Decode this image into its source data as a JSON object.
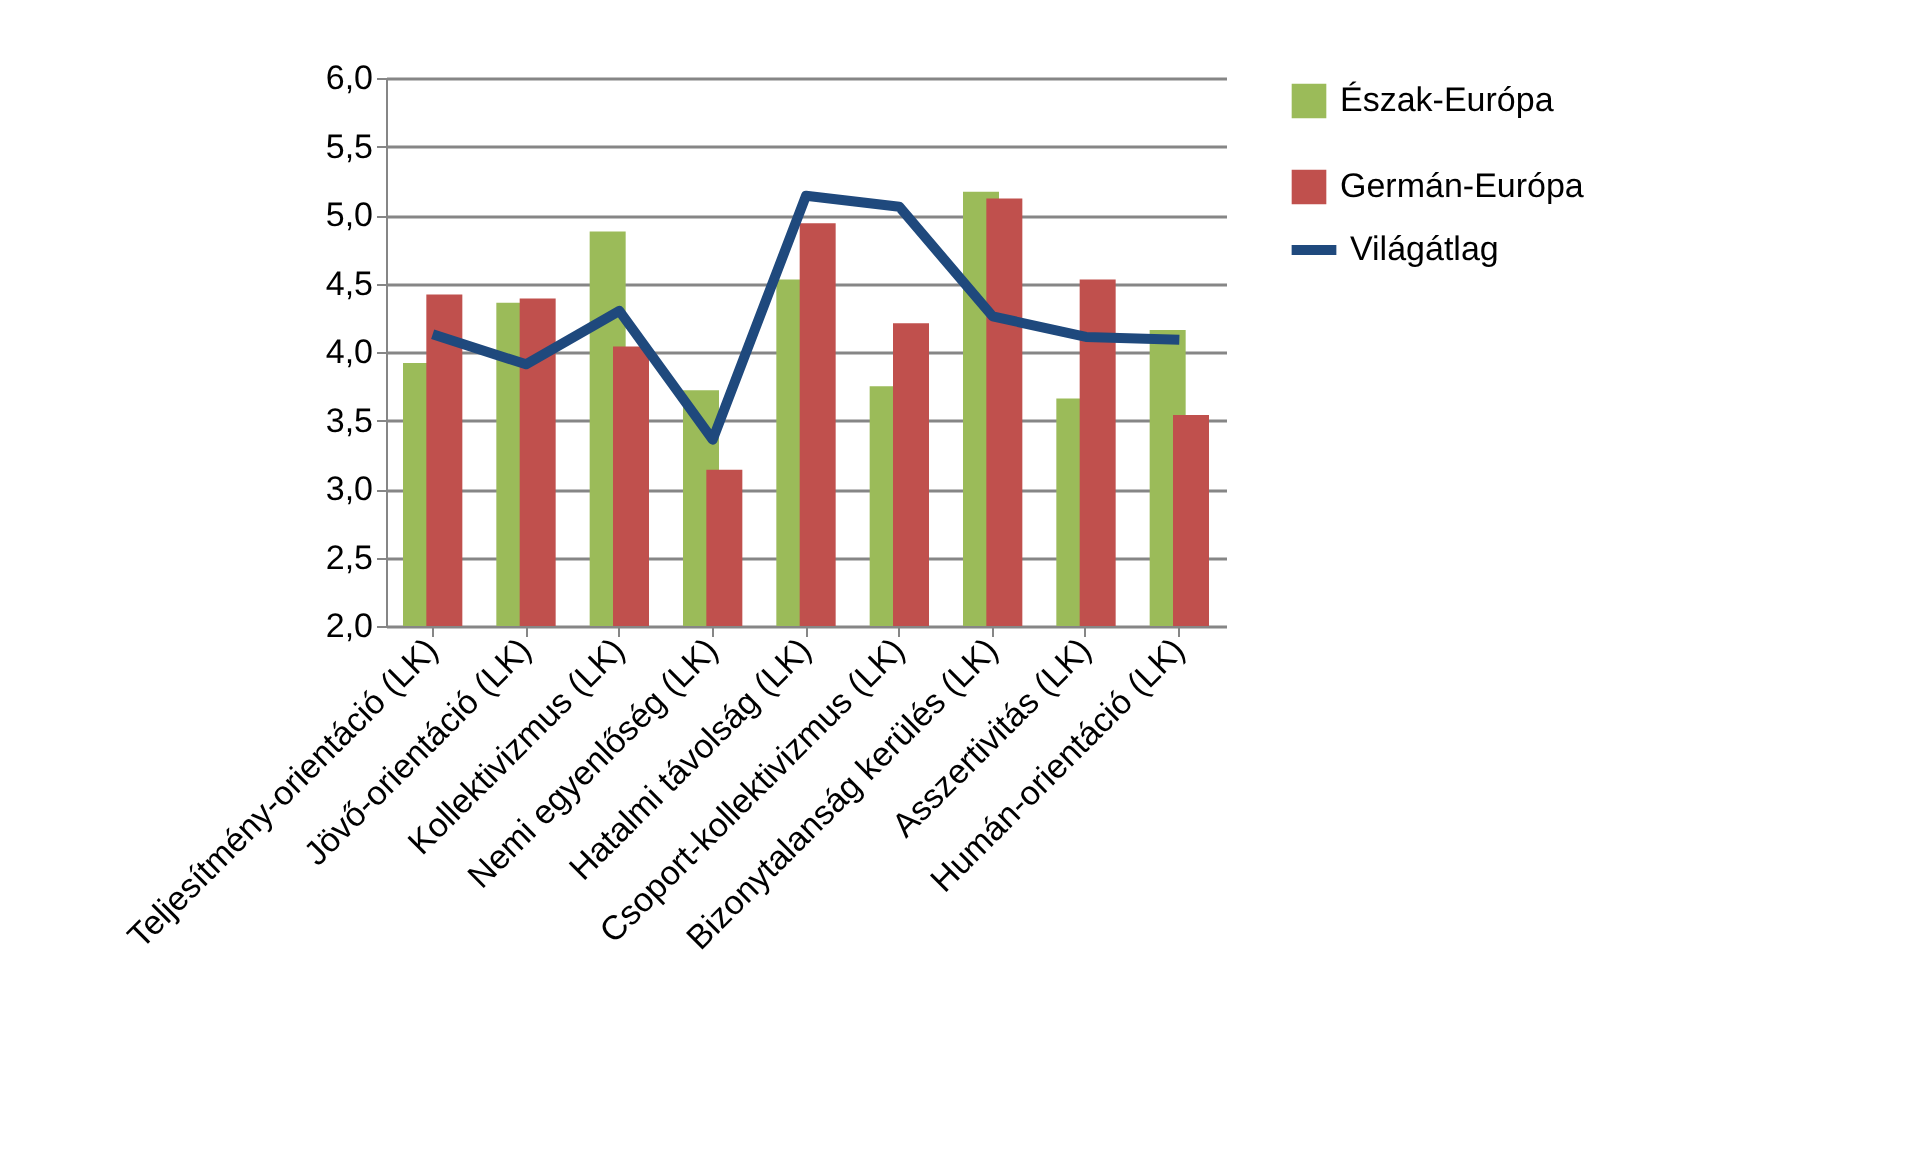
{
  "chart_data": {
    "type": "bar",
    "categories": [
      "Teljesítmény-orientáció (LK)",
      "Jövő-orientáció (LK)",
      "Kollektivizmus (LK)",
      "Nemi egyenlőség (LK)",
      "Hatalmi távolság (LK)",
      "Csoport-kollektivizmus (LK)",
      "Bizonytalanság kerülés (LK)",
      "Asszertivitás (LK)",
      "Humán-orientáció (LK)"
    ],
    "series": [
      {
        "name": "Észak-Európa",
        "color": "#9bbb59",
        "values": [
          3.92,
          4.36,
          4.88,
          3.72,
          4.53,
          3.75,
          5.17,
          3.66,
          4.16
        ]
      },
      {
        "name": "Germán-Európa",
        "color": "#c0504d",
        "values": [
          4.42,
          4.39,
          4.04,
          3.14,
          4.94,
          4.21,
          5.12,
          4.53,
          3.54
        ]
      },
      {
        "name": "Világátlag",
        "color": "#1f497d",
        "type": "line",
        "values": [
          4.13,
          3.91,
          4.3,
          3.36,
          5.14,
          5.06,
          4.26,
          4.11,
          4.09
        ]
      }
    ],
    "ylim": [
      2.0,
      6.0
    ],
    "yticks": [
      {
        "value": 2.0,
        "label": "2,0"
      },
      {
        "value": 2.5,
        "label": "2,5"
      },
      {
        "value": 3.0,
        "label": "3,0"
      },
      {
        "value": 3.5,
        "label": "3,5"
      },
      {
        "value": 4.0,
        "label": "4,0"
      },
      {
        "value": 4.5,
        "label": "4,5"
      },
      {
        "value": 5.0,
        "label": "5,0"
      },
      {
        "value": 5.5,
        "label": "5,5"
      },
      {
        "value": 6.0,
        "label": "6,0"
      }
    ],
    "grid": "y",
    "legend": "right",
    "marker": "none",
    "line_style": "solid"
  }
}
